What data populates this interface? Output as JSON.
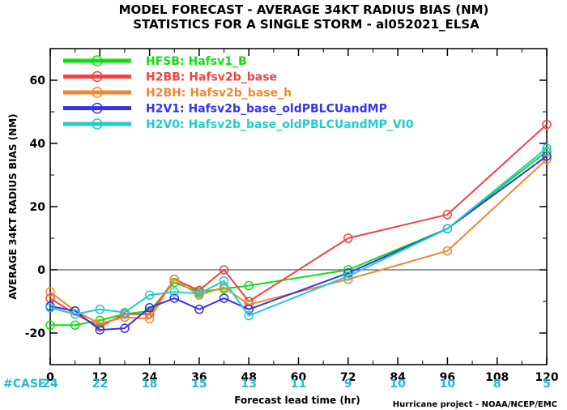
{
  "chart_data": {
    "type": "line",
    "title": "MODEL FORECAST - AVERAGE 34KT RADIUS BIAS (NM)",
    "subtitle": "STATISTICS FOR A SINGLE STORM - al052021_ELSA",
    "xlabel": "Forecast lead time (hr)",
    "ylabel": "AVERAGE 34KT RADIUS BIAS (NM)",
    "xlim": [
      0,
      120
    ],
    "ylim": [
      -30,
      70
    ],
    "x_ticks": [
      0,
      12,
      24,
      36,
      48,
      60,
      72,
      84,
      96,
      108,
      120
    ],
    "y_ticks": [
      -20,
      0,
      20,
      40,
      60
    ],
    "zero_line": 0,
    "case_label": "#CASE",
    "case_color": "#22bbcc",
    "case_counts": [
      {
        "x": 0,
        "n": "24"
      },
      {
        "x": 12,
        "n": "22"
      },
      {
        "x": 24,
        "n": "18"
      },
      {
        "x": 36,
        "n": "15"
      },
      {
        "x": 48,
        "n": "13"
      },
      {
        "x": 60,
        "n": "11"
      },
      {
        "x": 72,
        "n": "9"
      },
      {
        "x": 84,
        "n": "10"
      },
      {
        "x": 96,
        "n": "10"
      },
      {
        "x": 108,
        "n": "8"
      },
      {
        "x": 120,
        "n": "5"
      }
    ],
    "series": [
      {
        "name": "HFSB: Hafsv1_B",
        "color": "#11dd11",
        "points": [
          [
            0,
            -17.5
          ],
          [
            6,
            -17.5
          ],
          [
            12,
            -16
          ],
          [
            18,
            -14
          ],
          [
            24,
            -13
          ],
          [
            30,
            -4
          ],
          [
            36,
            -7
          ],
          [
            42,
            -6
          ],
          [
            48,
            -5
          ],
          [
            72,
            0
          ],
          [
            96,
            13
          ],
          [
            120,
            37.5
          ]
        ]
      },
      {
        "name": "H2BB: Hafsv2b_base",
        "color": "#ee4444",
        "points": [
          [
            0,
            -9
          ],
          [
            6,
            -14
          ],
          [
            12,
            -18
          ],
          [
            18,
            -14
          ],
          [
            24,
            -14
          ],
          [
            30,
            -3
          ],
          [
            36,
            -6.5
          ],
          [
            42,
            0
          ],
          [
            48,
            -10
          ],
          [
            72,
            10
          ],
          [
            96,
            17.5
          ],
          [
            120,
            46
          ]
        ]
      },
      {
        "name": "H2BH: Hafsv2b_base_h",
        "color": "#ee8833",
        "points": [
          [
            0,
            -7
          ],
          [
            6,
            -13
          ],
          [
            12,
            -17
          ],
          [
            18,
            -15
          ],
          [
            24,
            -15.5
          ],
          [
            30,
            -3
          ],
          [
            36,
            -8
          ],
          [
            42,
            -5.5
          ],
          [
            48,
            -11
          ],
          [
            72,
            -3
          ],
          [
            96,
            6
          ],
          [
            120,
            35
          ]
        ]
      },
      {
        "name": "H2V1: Hafsv2b_base_oldPBLCUandMP",
        "color": "#3333ee",
        "points": [
          [
            0,
            -11.5
          ],
          [
            6,
            -13
          ],
          [
            12,
            -19
          ],
          [
            18,
            -18.5
          ],
          [
            24,
            -12
          ],
          [
            30,
            -9
          ],
          [
            36,
            -12.5
          ],
          [
            42,
            -9
          ],
          [
            48,
            -12.5
          ],
          [
            72,
            -1
          ],
          [
            96,
            13
          ],
          [
            120,
            36
          ]
        ]
      },
      {
        "name": "H2V0: Hafsv2b_base_oldPBLCUandMP_VI0",
        "color": "#22cccc",
        "points": [
          [
            0,
            -12
          ],
          [
            6,
            -14
          ],
          [
            12,
            -12.5
          ],
          [
            18,
            -13.5
          ],
          [
            24,
            -8
          ],
          [
            30,
            -7
          ],
          [
            36,
            -7.5
          ],
          [
            42,
            -3.5
          ],
          [
            48,
            -14.5
          ],
          [
            72,
            -2
          ],
          [
            96,
            13
          ],
          [
            120,
            38.5
          ]
        ]
      }
    ],
    "legend_position": "top-left",
    "grid": false
  },
  "credit": "Hurricane project - NOAA/NCEP/EMC"
}
